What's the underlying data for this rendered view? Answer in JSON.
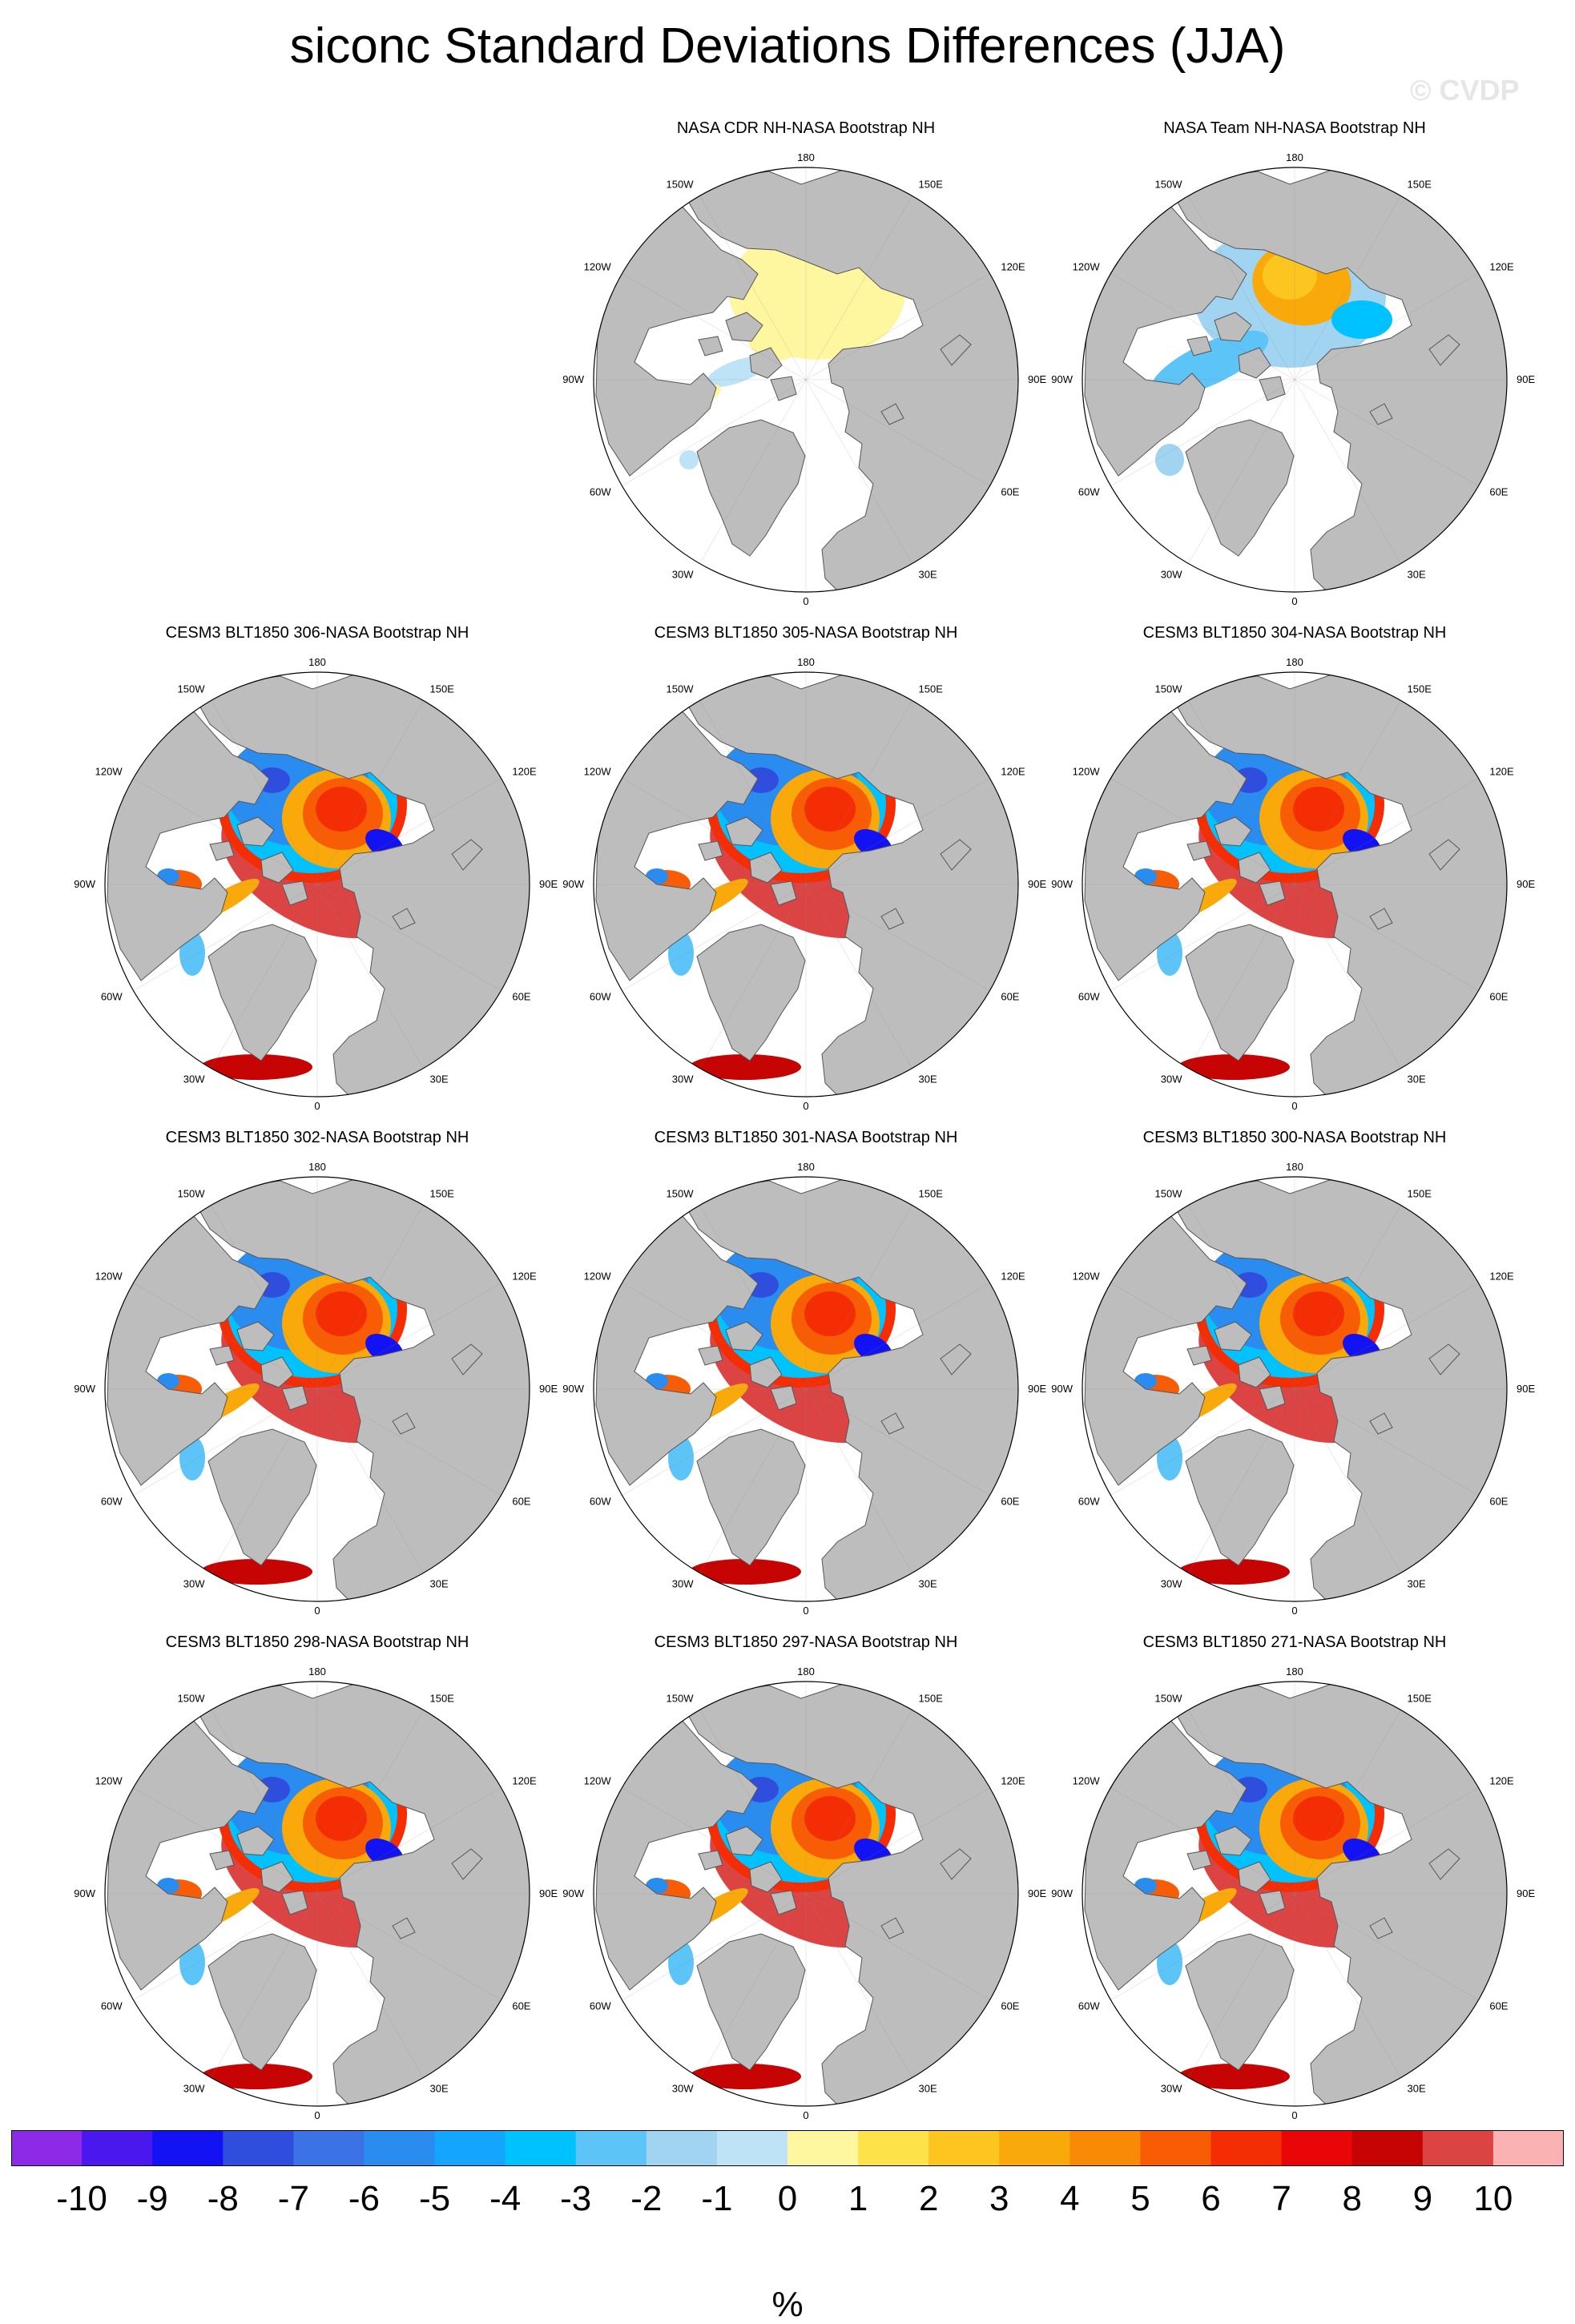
{
  "title": "siconc Standard Deviations Differences (JJA)",
  "watermark": "© CVDP",
  "units": "%",
  "longitude_labels": [
    "180",
    "150E",
    "120E",
    "90E",
    "60E",
    "30E",
    "0",
    "30W",
    "60W",
    "90W",
    "120W",
    "150W"
  ],
  "panels": [
    {
      "title": "NASA CDR NH-NASA Bootstrap NH",
      "style": "cdr"
    },
    {
      "title": "NASA Team NH-NASA Bootstrap NH",
      "style": "team"
    },
    {
      "title": "CESM3 BLT1850 306-NASA Bootstrap NH",
      "style": "model"
    },
    {
      "title": "CESM3 BLT1850 305-NASA Bootstrap NH",
      "style": "model"
    },
    {
      "title": "CESM3 BLT1850 304-NASA Bootstrap NH",
      "style": "model"
    },
    {
      "title": "CESM3 BLT1850 302-NASA Bootstrap NH",
      "style": "model"
    },
    {
      "title": "CESM3 BLT1850 301-NASA Bootstrap NH",
      "style": "model"
    },
    {
      "title": "CESM3 BLT1850 300-NASA Bootstrap NH",
      "style": "model"
    },
    {
      "title": "CESM3 BLT1850 298-NASA Bootstrap NH",
      "style": "model"
    },
    {
      "title": "CESM3 BLT1850 297-NASA Bootstrap NH",
      "style": "model"
    },
    {
      "title": "CESM3 BLT1850 271-NASA Bootstrap NH",
      "style": "model"
    }
  ],
  "colorbar": {
    "labels": [
      "-10",
      "-9",
      "-8",
      "-7",
      "-6",
      "-5",
      "-4",
      "-3",
      "-2",
      "-1",
      "0",
      "1",
      "2",
      "3",
      "4",
      "5",
      "6",
      "7",
      "8",
      "9",
      "10"
    ],
    "colors": [
      "#8c2ae8",
      "#4a18ee",
      "#1212f2",
      "#2f4ede",
      "#3b73e6",
      "#2b8cf0",
      "#14a6ff",
      "#00c2ff",
      "#5cc4f6",
      "#a0d4f0",
      "#bfe3f6",
      "#fff7a0",
      "#fde24a",
      "#fcc51f",
      "#f9a90a",
      "#f98a05",
      "#f85c05",
      "#f52d05",
      "#e80608",
      "#c70404",
      "#dc4444",
      "#fbb2b2"
    ]
  },
  "colors": {
    "land": "#bdbdbd",
    "ocean": "#ffffff",
    "coast": "#555555"
  }
}
